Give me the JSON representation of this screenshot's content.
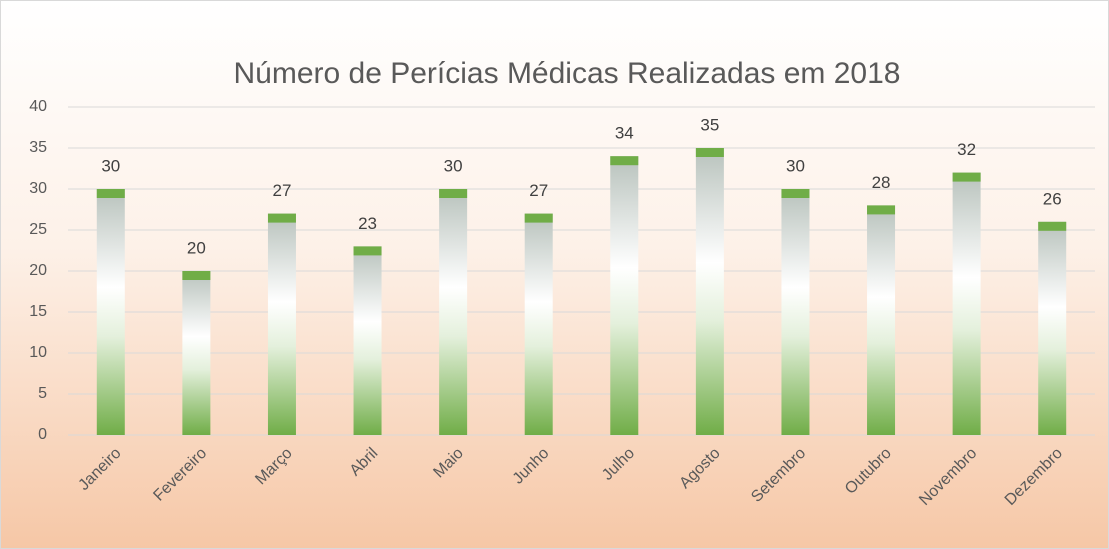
{
  "chart_data": {
    "type": "bar",
    "title": "Número de Perícias Médicas Realizadas em 2018",
    "categories": [
      "Janeiro",
      "Fevereiro",
      "Março",
      "Abril",
      "Maio",
      "Junho",
      "Julho",
      "Agosto",
      "Setembro",
      "Outubro",
      "Novembro",
      "Dezembro"
    ],
    "values": [
      30,
      20,
      27,
      23,
      30,
      27,
      34,
      35,
      30,
      28,
      32,
      26
    ],
    "color": "#70ad47",
    "ylim": [
      0,
      40
    ],
    "yticks": [
      0,
      5,
      10,
      15,
      20,
      25,
      30,
      35,
      40
    ],
    "grid": true
  }
}
